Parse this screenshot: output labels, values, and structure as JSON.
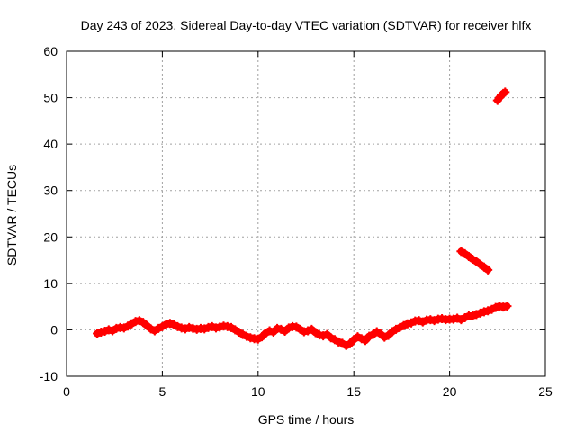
{
  "chart_data": {
    "type": "scatter",
    "title": "Day 243 of 2023, Sidereal Day-to-day VTEC variation (SDTVAR) for receiver hlfx",
    "xlabel": "GPS time / hours",
    "ylabel": "SDTVAR / TECUs",
    "xlim": [
      0,
      25
    ],
    "ylim": [
      -10,
      60
    ],
    "x_ticks": [
      0,
      5,
      10,
      15,
      20,
      25
    ],
    "y_ticks": [
      -10,
      0,
      10,
      20,
      30,
      40,
      50,
      60
    ],
    "x_tick_labels": [
      "0",
      "5",
      "10",
      "15",
      "20",
      "25"
    ],
    "y_tick_labels": [
      "-10",
      "0",
      "10",
      "20",
      "30",
      "40",
      "50",
      "60"
    ],
    "grid": true,
    "legend": "none",
    "marker": "plus",
    "series": [
      {
        "color": "#ff0000",
        "x": [
          1.6,
          1.8,
          2.0,
          2.2,
          2.4,
          2.6,
          2.8,
          3.0,
          3.2,
          3.4,
          3.6,
          3.8,
          4.0,
          4.2,
          4.4,
          4.6,
          4.8,
          5.0,
          5.2,
          5.4,
          5.6,
          5.8,
          6.0,
          6.2,
          6.4,
          6.6,
          6.8,
          7.0,
          7.2,
          7.4,
          7.6,
          7.8,
          8.0,
          8.2,
          8.4,
          8.6,
          8.8,
          9.0,
          9.2,
          9.4,
          9.6,
          9.8,
          10.0,
          10.2,
          10.4,
          10.6,
          10.8,
          11.0,
          11.2,
          11.4,
          11.6,
          11.8,
          12.0,
          12.2,
          12.4,
          12.6,
          12.8,
          13.0,
          13.2,
          13.4,
          13.6,
          13.8,
          14.0,
          14.2,
          14.4,
          14.6,
          14.8,
          15.0,
          15.2,
          15.4,
          15.6,
          15.8,
          16.0,
          16.2,
          16.4,
          16.6,
          16.8,
          17.0,
          17.2,
          17.4,
          17.6,
          17.8,
          18.0,
          18.2,
          18.4,
          18.6,
          18.8,
          19.0,
          19.2,
          19.4,
          19.6,
          19.8,
          20.0,
          20.2,
          20.4,
          20.6,
          20.8,
          21.0,
          21.2,
          21.4,
          21.6,
          21.8,
          22.0,
          22.2,
          22.4,
          22.6,
          22.8,
          23.0
        ],
        "y": [
          -0.8,
          -0.5,
          -0.3,
          0.0,
          -0.2,
          0.3,
          0.5,
          0.4,
          0.8,
          1.3,
          1.8,
          2.0,
          1.6,
          0.9,
          0.2,
          -0.2,
          0.3,
          0.7,
          1.2,
          1.4,
          1.1,
          0.7,
          0.4,
          0.2,
          0.5,
          0.3,
          0.1,
          0.3,
          0.2,
          0.5,
          0.7,
          0.4,
          0.6,
          0.8,
          0.7,
          0.5,
          0.0,
          -0.5,
          -1.0,
          -1.4,
          -1.7,
          -1.9,
          -2.0,
          -1.5,
          -0.7,
          -0.2,
          -0.5,
          0.3,
          0.1,
          -0.3,
          0.4,
          0.7,
          0.6,
          0.1,
          -0.4,
          -0.2,
          0.1,
          -0.6,
          -1.1,
          -1.3,
          -1.0,
          -1.7,
          -2.1,
          -2.6,
          -2.9,
          -3.4,
          -3.0,
          -2.1,
          -1.5,
          -1.9,
          -2.3,
          -1.4,
          -1.0,
          -0.4,
          -0.9,
          -1.6,
          -1.2,
          -0.4,
          0.1,
          0.5,
          0.9,
          1.3,
          1.5,
          1.9,
          2.0,
          1.7,
          2.1,
          2.2,
          2.0,
          2.3,
          2.4,
          2.2,
          2.3,
          2.3,
          2.5,
          2.2,
          2.6,
          3.0,
          3.0,
          3.3,
          3.6,
          3.9,
          4.1,
          4.4,
          4.8,
          5.1,
          4.9,
          5.1
        ]
      },
      {
        "color": "#ff0000",
        "x": [
          20.6,
          20.8,
          21.0,
          21.2,
          21.4,
          21.6,
          21.8,
          22.0
        ],
        "y": [
          16.9,
          16.4,
          15.8,
          15.2,
          14.7,
          14.1,
          13.5,
          12.9
        ]
      },
      {
        "color": "#ff0000",
        "x": [
          22.5,
          22.6,
          22.7,
          22.8,
          22.9
        ],
        "y": [
          49.4,
          50.0,
          50.5,
          50.9,
          51.2
        ]
      }
    ]
  }
}
